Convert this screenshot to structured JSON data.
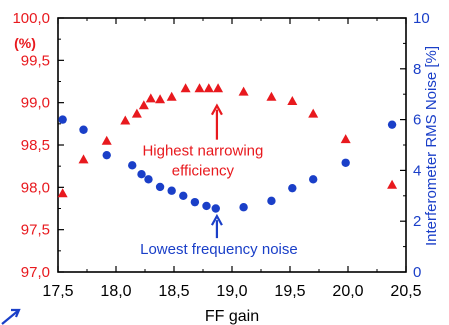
{
  "chart_data": {
    "type": "scatter",
    "title": "",
    "xlabel": "FF gain",
    "ylabel_left_unit": "(%)",
    "ylabel_right": "Interferometer RMS Noise [%]",
    "xlim": [
      17.5,
      20.5
    ],
    "ylim_left": [
      97.0,
      100.0
    ],
    "ylim_right": [
      0,
      10
    ],
    "x_ticks": [
      "17,5",
      "18,0",
      "18,5",
      "19,0",
      "19,5",
      "20,0",
      "20,5"
    ],
    "y_left_ticks": [
      "97,0",
      "97,5",
      "98,0",
      "98,5",
      "99,0",
      "99,5",
      "100,0"
    ],
    "y_right_ticks": [
      "0",
      "2",
      "4",
      "6",
      "8",
      "10"
    ],
    "colors": {
      "left": "#e8191e",
      "right": "#1a3fc8"
    },
    "grid": false,
    "series": [
      {
        "axis": "left",
        "marker": "triangle",
        "x": [
          17.54,
          17.72,
          17.92,
          18.08,
          18.18,
          18.24,
          18.3,
          18.38,
          18.48,
          18.6,
          18.72,
          18.8,
          18.88,
          19.1,
          19.34,
          19.52,
          19.7,
          19.98,
          20.38
        ],
        "y": [
          97.93,
          98.33,
          98.55,
          98.79,
          98.87,
          98.97,
          99.05,
          99.04,
          99.07,
          99.17,
          99.17,
          99.17,
          99.17,
          99.13,
          99.07,
          99.02,
          98.87,
          98.57,
          98.03
        ]
      },
      {
        "axis": "right",
        "marker": "circle",
        "x": [
          17.54,
          17.72,
          17.92,
          18.14,
          18.22,
          18.28,
          18.38,
          18.48,
          18.58,
          18.68,
          18.78,
          18.86,
          19.1,
          19.34,
          19.52,
          19.7,
          19.98,
          20.38
        ],
        "y": [
          6.0,
          5.6,
          4.6,
          4.2,
          3.85,
          3.65,
          3.35,
          3.2,
          3.0,
          2.75,
          2.6,
          2.5,
          2.55,
          2.8,
          3.3,
          3.65,
          4.3,
          5.8
        ]
      }
    ],
    "annotations": [
      {
        "id": "narrow",
        "lines": [
          "Highest narrowing",
          "efficiency"
        ],
        "color": "#e8191e",
        "target": {
          "x": 18.87,
          "y": 99.0,
          "axis": "left"
        }
      },
      {
        "id": "noise",
        "lines": [
          "Lowest frequency noise"
        ],
        "color": "#1a3fc8",
        "target": {
          "x": 18.87,
          "y": 2.2,
          "axis": "right"
        }
      }
    ]
  }
}
